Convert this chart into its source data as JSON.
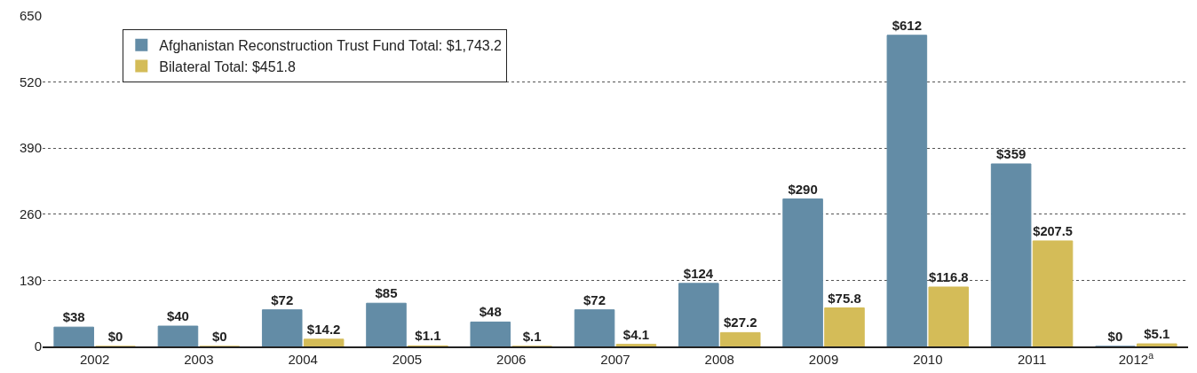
{
  "chart_data": {
    "type": "bar",
    "categories": [
      "2002",
      "2003",
      "2004",
      "2005",
      "2006",
      "2007",
      "2008",
      "2009",
      "2010",
      "2011",
      "2012$^{a}$"
    ],
    "series": [
      {
        "name": "Afghanistan Reconstruction Trust Fund Total: $1,743.2",
        "color": "#638ca6",
        "values": [
          38,
          40,
          72,
          85,
          48,
          72,
          124,
          290,
          612,
          359,
          0
        ],
        "value_labels": [
          "$38",
          "$40",
          "$72",
          "$85",
          "$48",
          "$72",
          "$124",
          "$290",
          "$612",
          "$359",
          "$0"
        ]
      },
      {
        "name": "Bilateral Total: $451.8",
        "color": "#d4bc58",
        "values": [
          0,
          0,
          14.2,
          1.1,
          0.1,
          4.1,
          27.2,
          75.8,
          116.8,
          207.5,
          5.1
        ],
        "value_labels": [
          "$0",
          "$0",
          "$14.2",
          "$1.1",
          "$.1",
          "$4.1",
          "$27.2",
          "$75.8",
          "$116.8",
          "$207.5",
          "$5.1"
        ]
      }
    ],
    "ylim": [
      0,
      650
    ],
    "yticks": [
      0,
      130,
      260,
      390,
      520,
      650
    ],
    "grid": "y",
    "legend": "top left"
  }
}
